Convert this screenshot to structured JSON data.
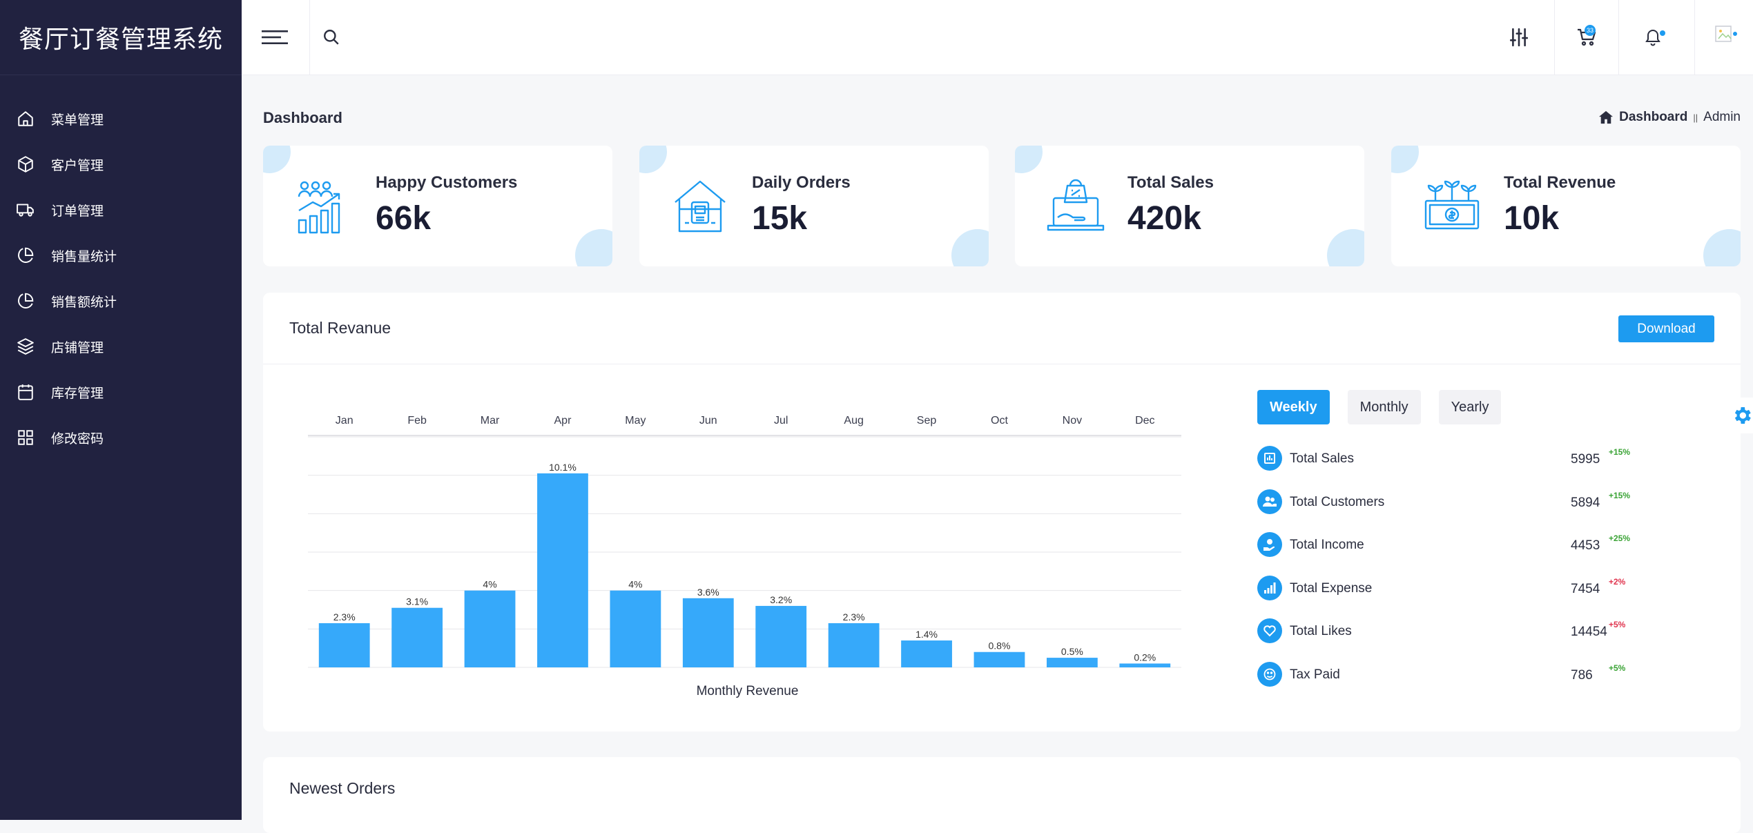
{
  "sidebar": {
    "brand": "餐厅订餐管理系统",
    "items": [
      {
        "label": "菜单管理",
        "icon": "home-icon"
      },
      {
        "label": "客户管理",
        "icon": "box-icon"
      },
      {
        "label": "订单管理",
        "icon": "truck-icon"
      },
      {
        "label": "销售量统计",
        "icon": "pie-chart-icon"
      },
      {
        "label": "销售额统计",
        "icon": "pie-chart-icon"
      },
      {
        "label": "店铺管理",
        "icon": "layers-icon"
      },
      {
        "label": "库存管理",
        "icon": "calendar-icon"
      },
      {
        "label": "修改密码",
        "icon": "grid-icon"
      }
    ]
  },
  "topbar": {
    "cart_count": "33"
  },
  "page": {
    "title": "Dashboard",
    "breadcrumb": {
      "home": "Dashboard",
      "separator": "||",
      "current": "Admin"
    }
  },
  "cards": [
    {
      "label": "Happy Customers",
      "value": "66k",
      "icon": "growth-chart-icon"
    },
    {
      "label": "Daily Orders",
      "value": "15k",
      "icon": "store-icon"
    },
    {
      "label": "Total Sales",
      "value": "420k",
      "icon": "laptop-shopping-icon"
    },
    {
      "label": "Total Revenue",
      "value": "10k",
      "icon": "money-plant-icon"
    }
  ],
  "revenue": {
    "title": "Total Revanue",
    "download_label": "Download",
    "tabs": [
      "Weekly",
      "Monthly",
      "Yearly"
    ],
    "active_tab": "Weekly",
    "stats": [
      {
        "label": "Total Sales",
        "value": "5995",
        "change": "+15%",
        "dir": "up",
        "icon": "bar-chart-icon"
      },
      {
        "label": "Total Customers",
        "value": "5894",
        "change": "+15%",
        "dir": "up",
        "icon": "users-icon"
      },
      {
        "label": "Total Income",
        "value": "4453",
        "change": "+25%",
        "dir": "up",
        "icon": "hand-coin-icon"
      },
      {
        "label": "Total Expense",
        "value": "7454",
        "change": "+2%",
        "dir": "down",
        "icon": "signal-icon"
      },
      {
        "label": "Total Likes",
        "value": "14454",
        "change": "+5%",
        "dir": "down",
        "icon": "heart-icon"
      },
      {
        "label": "Tax Paid",
        "value": "786",
        "change": "+5%",
        "dir": "up",
        "icon": "smile-icon"
      }
    ]
  },
  "chart_data": {
    "type": "bar",
    "title": "",
    "xlabel": "Monthly Revenue",
    "ylabel": "",
    "categories": [
      "Jan",
      "Feb",
      "Mar",
      "Apr",
      "May",
      "Jun",
      "Jul",
      "Aug",
      "Sep",
      "Oct",
      "Nov",
      "Dec"
    ],
    "values": [
      2.3,
      3.1,
      4,
      10.1,
      4,
      3.6,
      3.2,
      2.3,
      1.4,
      0.8,
      0.5,
      0.2
    ],
    "labels": [
      "2.3%",
      "3.1%",
      "4%",
      "10.1%",
      "4%",
      "3.6%",
      "3.2%",
      "2.3%",
      "1.4%",
      "0.8%",
      "0.5%",
      "0.2%"
    ],
    "ylim": [
      0,
      12
    ],
    "gridlines": 6,
    "color": "#36a9fa"
  },
  "orders": {
    "title": "Newest Orders"
  },
  "colors": {
    "accent": "#1d9bf0",
    "sidebar": "#212240",
    "up": "#3aa335",
    "down": "#e0334d"
  }
}
